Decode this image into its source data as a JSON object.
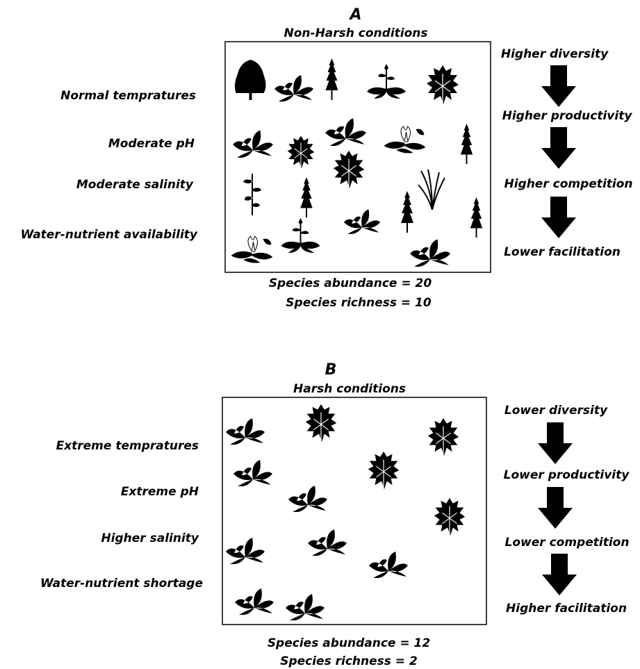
{
  "panel_a": {
    "label": "A",
    "title": "Non-Harsh conditions",
    "factors": [
      "Normal tempratures",
      "Moderate pH",
      "Moderate salinity",
      "Water-nutrient availability"
    ],
    "effects": [
      "Higher diversity",
      "Higher productivity",
      "Higher competition",
      "Lower facilitation"
    ],
    "abundance": "Species abundance = 20",
    "richness": "Species richness = 10"
  },
  "panel_b": {
    "label": "B",
    "title": "Harsh conditions",
    "factors": [
      "Extreme tempratures",
      "Extreme pH",
      "Higher salinity",
      "Water-nutrient shortage"
    ],
    "effects": [
      "Lower diversity",
      "Lower productivity",
      "Lower competition",
      "Higher facilitation"
    ],
    "abundance": "Species abundance = 12",
    "richness": "Species richness = 2"
  }
}
